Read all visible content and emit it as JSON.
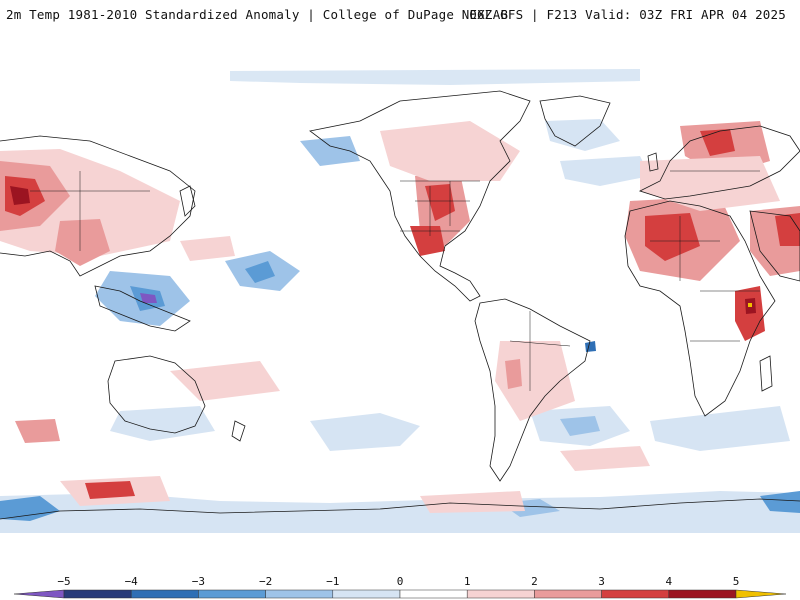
{
  "header": {
    "title_left": "2m Temp 1981-2010 Standardized Anomaly | College of DuPage NEXLAB",
    "title_right": "06Z GFS | F213 Valid: 03Z FRI APR 04 2025"
  },
  "colorbar": {
    "ticks": [
      "−5",
      "−4",
      "−3",
      "−2",
      "−1",
      "0",
      "1",
      "2",
      "3",
      "4",
      "5"
    ],
    "bins": [
      {
        "lo": -6,
        "hi": -5,
        "color": "#7e57c2"
      },
      {
        "lo": -5,
        "hi": -4,
        "color": "#283b7a"
      },
      {
        "lo": -4,
        "hi": -3,
        "color": "#2f6fb5"
      },
      {
        "lo": -3,
        "hi": -2,
        "color": "#5b9bd5"
      },
      {
        "lo": -2,
        "hi": -1,
        "color": "#9ec3e8"
      },
      {
        "lo": -1,
        "hi": 0,
        "color": "#d6e4f3"
      },
      {
        "lo": 0,
        "hi": 1,
        "color": "#ffffff"
      },
      {
        "lo": 1,
        "hi": 2,
        "color": "#f6d3d3"
      },
      {
        "lo": 2,
        "hi": 3,
        "color": "#e99b9b"
      },
      {
        "lo": 3,
        "hi": 4,
        "color": "#d43f3f"
      },
      {
        "lo": 4,
        "hi": 5,
        "color": "#9b1421"
      },
      {
        "lo": 5,
        "hi": 6,
        "color": "#f0c000"
      }
    ]
  },
  "colors": {
    "cold_1": "#d6e4f3",
    "cold_2": "#9ec3e8",
    "cold_3": "#5b9bd5",
    "cold_4": "#2f6fb5",
    "cold_5": "#283b7a",
    "cold_6": "#7e57c2",
    "warm_1": "#f6d3d3",
    "warm_2": "#e99b9b",
    "warm_3": "#d43f3f",
    "warm_4": "#9b1421",
    "warm_5": "#f0c000",
    "coastline": "#1a1a1a"
  }
}
